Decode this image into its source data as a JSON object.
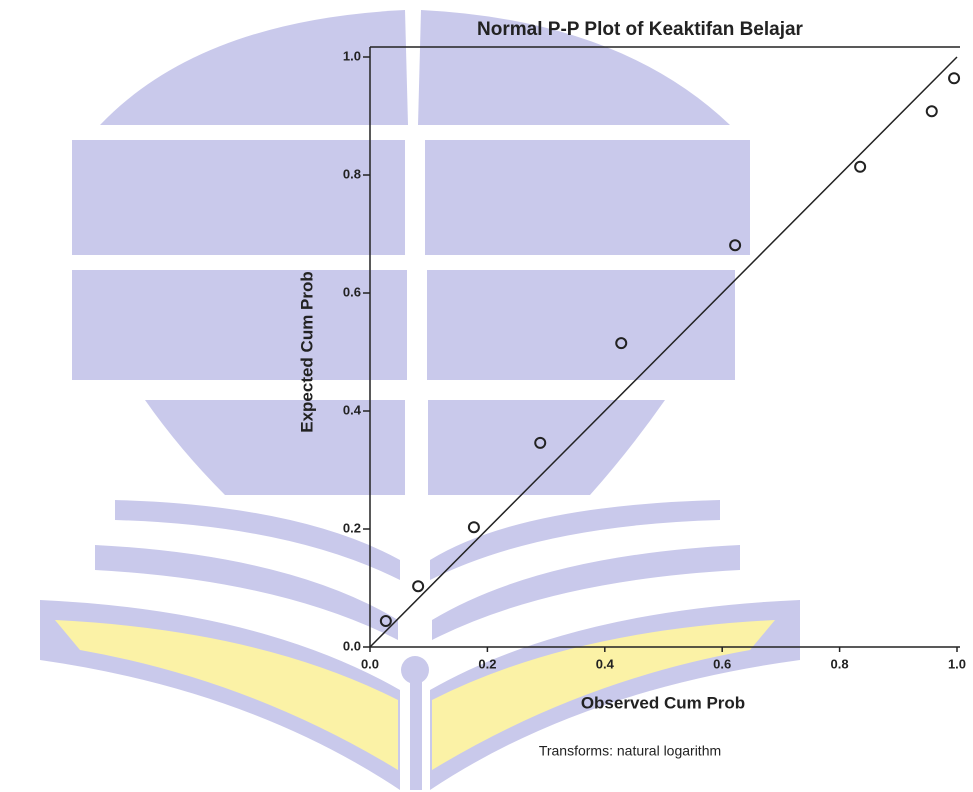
{
  "chart_data": {
    "type": "scatter",
    "title": "Normal P-P Plot of Keaktifan Belajar",
    "x_label": "Observed Cum Prob",
    "y_label": "Expected Cum Prob",
    "note": "Transforms: natural logarithm",
    "x": [
      0.027,
      0.082,
      0.177,
      0.29,
      0.428,
      0.622,
      0.835,
      0.957,
      0.995
    ],
    "values": [
      0.044,
      0.103,
      0.203,
      0.346,
      0.515,
      0.681,
      0.814,
      0.908,
      0.964
    ],
    "color": "#222222",
    "xlim": [
      0,
      1
    ],
    "ylim": [
      0,
      1
    ],
    "xticks": [
      {
        "value": 0,
        "label": "0.0"
      },
      0.2,
      0.4,
      0.6,
      0.8,
      {
        "value": 1,
        "label": "1.0"
      }
    ],
    "yticks": [
      {
        "value": 0,
        "label": "0.0"
      },
      0.2,
      0.4,
      0.6,
      0.8,
      {
        "value": 1,
        "label": "1.0"
      }
    ]
  }
}
